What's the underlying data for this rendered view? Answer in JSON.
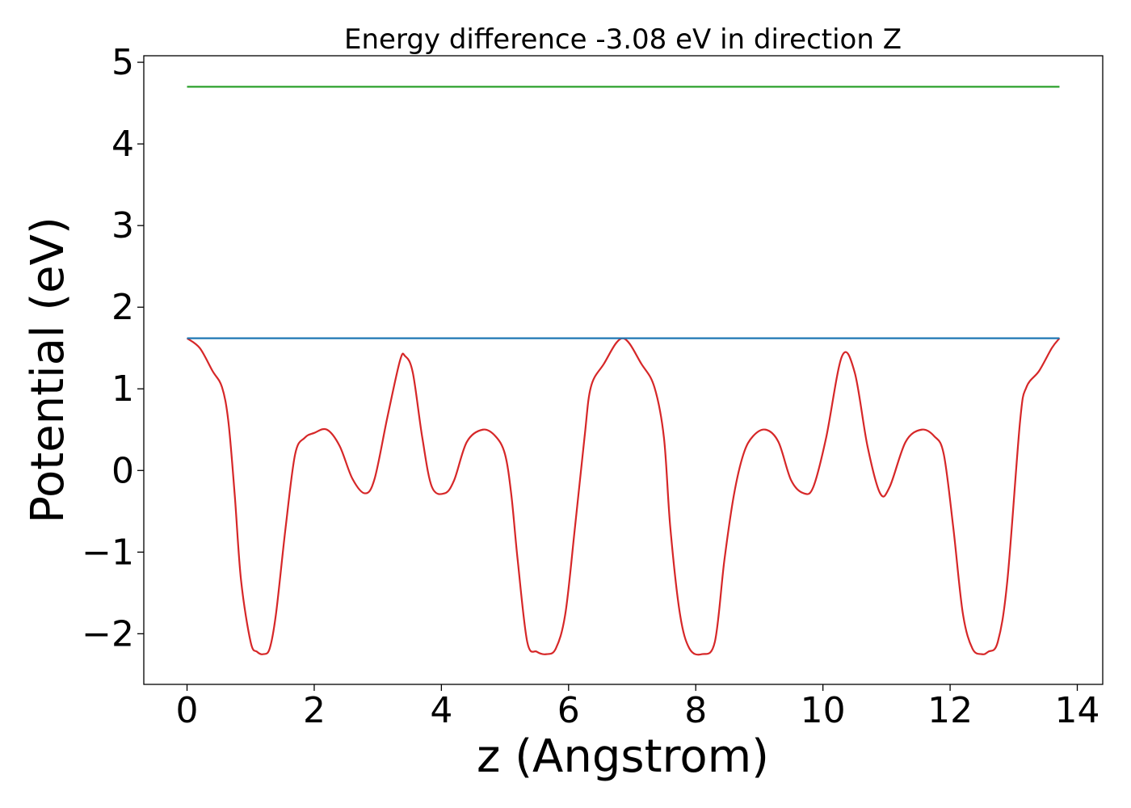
{
  "chart_data": {
    "type": "line",
    "title": "Energy difference -3.08 eV in direction Z",
    "xlabel": "z (Angstrom)",
    "ylabel": "Potential (eV)",
    "xlim": [
      -0.68,
      14.4
    ],
    "ylim": [
      -2.62,
      5.08
    ],
    "xticks": [
      0,
      2,
      4,
      6,
      8,
      10,
      12,
      14
    ],
    "yticks": [
      -2,
      -1,
      0,
      1,
      2,
      3,
      4,
      5
    ],
    "xtick_labels": [
      "0",
      "2",
      "4",
      "6",
      "8",
      "10",
      "12",
      "14"
    ],
    "ytick_labels": [
      "−2",
      "−1",
      "0",
      "1",
      "2",
      "3",
      "4",
      "5"
    ],
    "grid": false,
    "legend": "none",
    "series": [
      {
        "color": "#d62728",
        "x": [
          0,
          0.2,
          0.4,
          0.55,
          0.65,
          0.75,
          0.85,
          1.0,
          1.1,
          1.2,
          1.3,
          1.4,
          1.55,
          1.7,
          1.85,
          2.0,
          2.2,
          2.4,
          2.6,
          2.8,
          2.95,
          3.15,
          3.35,
          3.43,
          3.55,
          3.7,
          3.85,
          4.05,
          4.2,
          4.4,
          4.65,
          4.85,
          5.0,
          5.1,
          5.2,
          5.35,
          5.5,
          5.65,
          5.8,
          5.95,
          6.1,
          6.25,
          6.35,
          6.55,
          6.85,
          7.15,
          7.35,
          7.5,
          7.6,
          7.75,
          7.9,
          8.1,
          8.3,
          8.45,
          8.6,
          8.75,
          8.9,
          9.1,
          9.3,
          9.5,
          9.7,
          9.85,
          10.05,
          10.3,
          10.5,
          10.7,
          10.9,
          11.05,
          11.3,
          11.55,
          11.75,
          11.9,
          12.05,
          12.2,
          12.35,
          12.5,
          12.6,
          12.75,
          12.9,
          13.1,
          13.2,
          13.4,
          13.6,
          13.72
        ],
        "y": [
          1.62,
          1.5,
          1.22,
          1.02,
          0.6,
          -0.3,
          -1.35,
          -2.1,
          -2.22,
          -2.25,
          -2.18,
          -1.75,
          -0.7,
          0.2,
          0.4,
          0.46,
          0.5,
          0.3,
          -0.1,
          -0.28,
          -0.1,
          0.65,
          1.35,
          1.4,
          1.2,
          0.4,
          -0.2,
          -0.28,
          -0.12,
          0.35,
          0.5,
          0.42,
          0.2,
          -0.3,
          -1.1,
          -2.1,
          -2.22,
          -2.25,
          -2.18,
          -1.75,
          -0.7,
          0.4,
          1.02,
          1.3,
          1.62,
          1.3,
          1.02,
          0.4,
          -0.7,
          -1.75,
          -2.18,
          -2.25,
          -2.1,
          -1.1,
          -0.3,
          0.2,
          0.42,
          0.5,
          0.35,
          -0.12,
          -0.28,
          -0.2,
          0.4,
          1.4,
          1.2,
          0.3,
          -0.28,
          -0.2,
          0.35,
          0.5,
          0.42,
          0.2,
          -0.7,
          -1.75,
          -2.18,
          -2.25,
          -2.22,
          -2.1,
          -1.35,
          0.6,
          1.02,
          1.22,
          1.5,
          1.62
        ]
      },
      {
        "color": "#1f77b4",
        "x": [
          0,
          13.72
        ],
        "y": [
          1.62,
          1.62
        ]
      },
      {
        "color": "#2ca02c",
        "x": [
          0,
          13.72
        ],
        "y": [
          4.7,
          4.7
        ]
      }
    ]
  }
}
